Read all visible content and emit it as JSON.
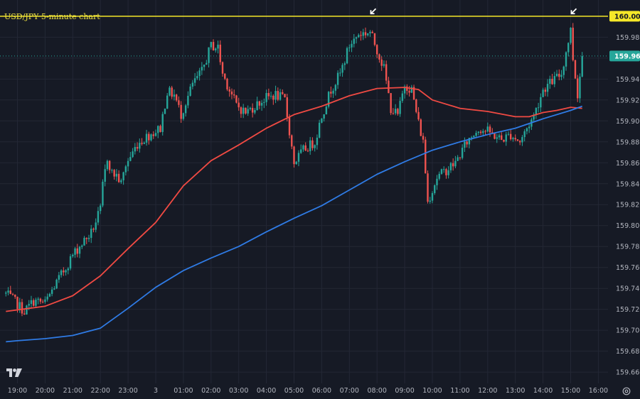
{
  "chart_data": {
    "type": "candlestick",
    "title": "USD/JPY 5-minute chart",
    "y_ticks": [
      "159.980",
      "159.960",
      "159.940",
      "159.920",
      "159.900",
      "159.880",
      "159.860",
      "159.840",
      "159.820",
      "159.800",
      "159.780",
      "159.760",
      "159.740",
      "159.720",
      "159.700",
      "159.680",
      "159.660"
    ],
    "x_ticks": [
      "19:00",
      "20:00",
      "21:00",
      "22:00",
      "23:00",
      "3",
      "01:00",
      "02:00",
      "03:00",
      "04:00",
      "05:00",
      "06:00",
      "07:00",
      "08:00",
      "09:00",
      "10:00",
      "11:00",
      "12:00",
      "13:00",
      "14:00",
      "15:00",
      "16:00"
    ],
    "ylim": [
      159.654,
      160.006
    ],
    "grid": true,
    "resistance": {
      "value": 160.0,
      "label": "160.000",
      "color": "#f5e829"
    },
    "last_price": {
      "value": 159.962,
      "label": "159.962",
      "color": "#26a69a"
    },
    "markers": [
      {
        "time": "07:45",
        "value": 159.997
      },
      {
        "time": "15:00",
        "value": 159.997
      }
    ],
    "series": [
      {
        "type": "ohlc",
        "up_color": "#26a69a",
        "down_color": "#ef5350",
        "anchors": [
          [
            "18:35",
            159.735
          ],
          [
            "19:00",
            159.725
          ],
          [
            "19:15",
            159.718
          ],
          [
            "19:35",
            159.728
          ],
          [
            "20:00",
            159.726
          ],
          [
            "20:20",
            159.742
          ],
          [
            "20:45",
            159.76
          ],
          [
            "21:00",
            159.772
          ],
          [
            "21:20",
            159.783
          ],
          [
            "21:40",
            159.793
          ],
          [
            "22:00",
            159.815
          ],
          [
            "22:05",
            159.838
          ],
          [
            "22:15",
            159.865
          ],
          [
            "22:25",
            159.85
          ],
          [
            "22:35",
            159.848
          ],
          [
            "22:45",
            159.84
          ],
          [
            "22:55",
            159.858
          ],
          [
            "23:10",
            159.87
          ],
          [
            "23:20",
            159.878
          ],
          [
            "23:40",
            159.885
          ],
          [
            "00:10",
            159.893
          ],
          [
            "00:25",
            159.928
          ],
          [
            "00:40",
            159.925
          ],
          [
            "00:55",
            159.906
          ],
          [
            "01:20",
            159.935
          ],
          [
            "01:40",
            159.947
          ],
          [
            "02:00",
            159.972
          ],
          [
            "02:15",
            159.97
          ],
          [
            "02:25",
            159.945
          ],
          [
            "02:40",
            159.93
          ],
          [
            "02:55",
            159.915
          ],
          [
            "03:15",
            159.908
          ],
          [
            "03:40",
            159.916
          ],
          [
            "04:00",
            159.922
          ],
          [
            "04:20",
            159.925
          ],
          [
            "04:40",
            159.92
          ],
          [
            "05:00",
            159.86
          ],
          [
            "05:20",
            159.872
          ],
          [
            "05:45",
            159.88
          ],
          [
            "06:00",
            159.905
          ],
          [
            "06:20",
            159.93
          ],
          [
            "06:40",
            159.945
          ],
          [
            "07:00",
            159.972
          ],
          [
            "07:20",
            159.983
          ],
          [
            "07:45",
            159.985
          ],
          [
            "08:00",
            159.968
          ],
          [
            "08:15",
            159.95
          ],
          [
            "08:30",
            159.912
          ],
          [
            "08:45",
            159.905
          ],
          [
            "09:00",
            159.935
          ],
          [
            "09:15",
            159.93
          ],
          [
            "09:30",
            159.898
          ],
          [
            "09:40",
            159.88
          ],
          [
            "09:50",
            159.823
          ],
          [
            "10:10",
            159.846
          ],
          [
            "10:30",
            159.853
          ],
          [
            "10:50",
            159.86
          ],
          [
            "11:15",
            159.88
          ],
          [
            "11:40",
            159.893
          ],
          [
            "12:00",
            159.89
          ],
          [
            "12:30",
            159.882
          ],
          [
            "12:50",
            159.887
          ],
          [
            "13:10",
            159.88
          ],
          [
            "13:25",
            159.893
          ],
          [
            "13:40",
            159.905
          ],
          [
            "14:00",
            159.93
          ],
          [
            "14:20",
            159.938
          ],
          [
            "14:40",
            159.945
          ],
          [
            "15:00",
            159.987
          ],
          [
            "15:05",
            159.96
          ],
          [
            "15:15",
            159.925
          ],
          [
            "15:25",
            159.962
          ]
        ]
      },
      {
        "type": "line",
        "color": "#f04a43",
        "points": [
          [
            "18:35",
            159.718
          ],
          [
            "20:00",
            159.723
          ],
          [
            "21:00",
            159.733
          ],
          [
            "22:00",
            159.752
          ],
          [
            "23:00",
            159.778
          ],
          [
            "00:00",
            159.803
          ],
          [
            "01:00",
            159.838
          ],
          [
            "02:00",
            159.862
          ],
          [
            "03:00",
            159.877
          ],
          [
            "04:00",
            159.893
          ],
          [
            "05:00",
            159.906
          ],
          [
            "06:00",
            159.914
          ],
          [
            "07:00",
            159.924
          ],
          [
            "08:00",
            159.931
          ],
          [
            "09:00",
            159.932
          ],
          [
            "09:30",
            159.93
          ],
          [
            "10:00",
            159.92
          ],
          [
            "11:00",
            159.912
          ],
          [
            "12:00",
            159.909
          ],
          [
            "13:00",
            159.904
          ],
          [
            "13:30",
            159.904
          ],
          [
            "14:00",
            159.908
          ],
          [
            "14:30",
            159.91
          ],
          [
            "15:00",
            159.913
          ],
          [
            "15:25",
            159.912
          ]
        ]
      },
      {
        "type": "line",
        "color": "#2f7be5",
        "points": [
          [
            "18:35",
            159.689
          ],
          [
            "19:00",
            159.69
          ],
          [
            "20:00",
            159.692
          ],
          [
            "21:00",
            159.695
          ],
          [
            "22:00",
            159.702
          ],
          [
            "23:00",
            159.721
          ],
          [
            "00:00",
            159.741
          ],
          [
            "01:00",
            159.757
          ],
          [
            "02:00",
            159.769
          ],
          [
            "03:00",
            159.78
          ],
          [
            "04:00",
            159.794
          ],
          [
            "05:00",
            159.807
          ],
          [
            "06:00",
            159.819
          ],
          [
            "07:00",
            159.834
          ],
          [
            "08:00",
            159.849
          ],
          [
            "09:00",
            159.861
          ],
          [
            "10:00",
            159.872
          ],
          [
            "11:00",
            159.88
          ],
          [
            "12:00",
            159.887
          ],
          [
            "13:00",
            159.893
          ],
          [
            "14:00",
            159.902
          ],
          [
            "15:00",
            159.91
          ],
          [
            "15:25",
            159.914
          ]
        ]
      }
    ]
  }
}
